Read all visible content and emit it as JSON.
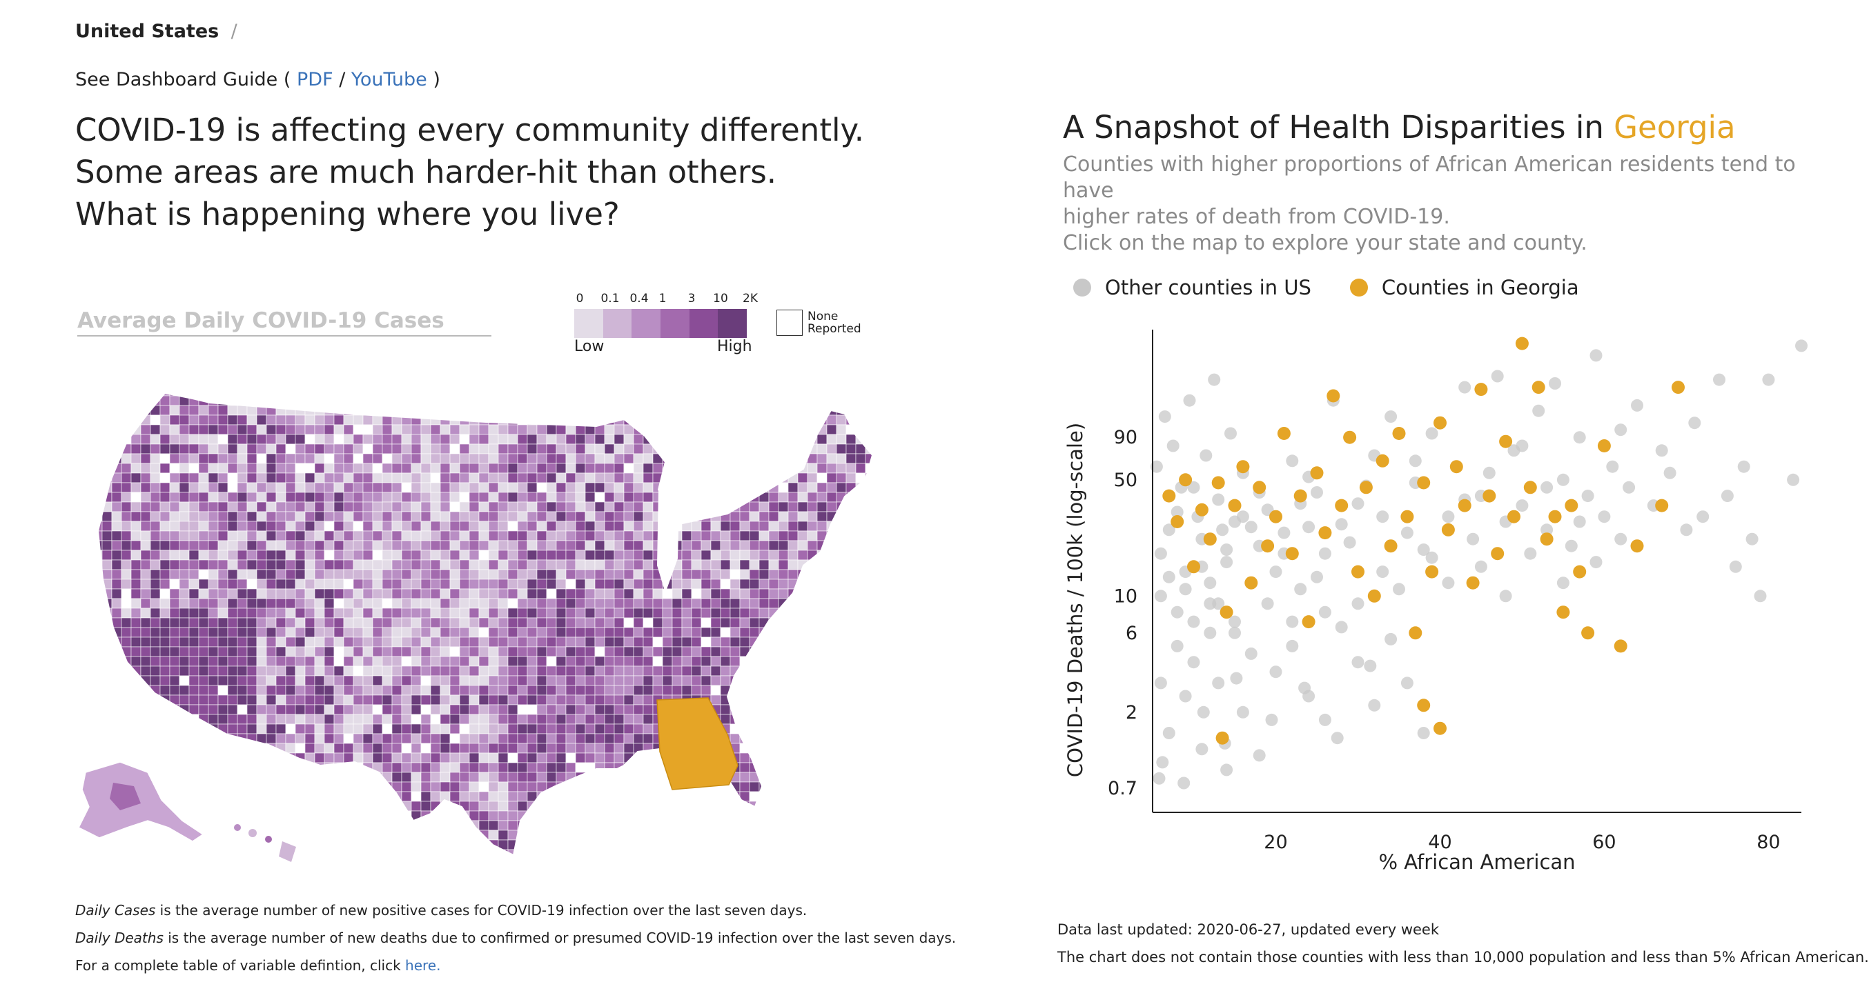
{
  "breadcrumb": {
    "country": "United States",
    "separator": "/"
  },
  "guide": {
    "prefix": "See Dashboard Guide (",
    "pdf": "PDF",
    "slash": "/",
    "youtube": "YouTube",
    "suffix": ")"
  },
  "headline": [
    "COVID-19 is affecting every community differently.",
    "Some areas are much harder-hit than others.",
    "What is happening where you live?"
  ],
  "map": {
    "title": "Average Daily COVID-19 Cases",
    "legend": {
      "ticks": [
        "0",
        "0.1",
        "0.4",
        "1",
        "3",
        "10",
        "2K"
      ],
      "colors": [
        "#e3dce7",
        "#cfb6d6",
        "#b98ec4",
        "#a36aae",
        "#8a4d97",
        "#6a3d7b"
      ],
      "low": "Low",
      "high": "High",
      "none_reported": [
        "None",
        "Reported"
      ]
    },
    "highlight_state": "Georgia",
    "highlight_color": "#e5a526"
  },
  "notes": {
    "cases_term": "Daily Cases",
    "cases_text": " is the average number of new positive cases for COVID-19 infection over the last seven days.",
    "deaths_term": "Daily Deaths",
    "deaths_text": " is the average number of new deaths due to confirmed or presumed COVID-19 infection over the last seven days.",
    "table_text": "For a complete table of variable defintion, click ",
    "table_link": "here."
  },
  "snapshot": {
    "title_prefix": "A Snapshot of Health Disparities in ",
    "state": "Georgia",
    "description": [
      "Counties with higher proportions of African American residents tend to have",
      "higher rates of death from COVID-19.",
      "Click on the map to explore your state and county."
    ]
  },
  "chart_data": {
    "type": "scatter",
    "xlabel": "% African American",
    "ylabel": "COVID-19 Deaths / 100k (log-scale)",
    "x_ticks": [
      20,
      40,
      60,
      80
    ],
    "y_ticks": [
      0.7,
      2,
      6,
      10,
      50,
      90
    ],
    "y_scale": "log",
    "xlim": [
      5,
      84
    ],
    "ylim": [
      0.5,
      400
    ],
    "series": [
      {
        "name": "Other counties in US",
        "color": "#c8c8c8",
        "points": [
          [
            6,
            18
          ],
          [
            7,
            25
          ],
          [
            8,
            32
          ],
          [
            9,
            14
          ],
          [
            10,
            45
          ],
          [
            11,
            22
          ],
          [
            12,
            9
          ],
          [
            13,
            38
          ],
          [
            14,
            16
          ],
          [
            15,
            28
          ],
          [
            16,
            55
          ],
          [
            17,
            12
          ],
          [
            18,
            20
          ],
          [
            19,
            33
          ],
          [
            21,
            18
          ],
          [
            22,
            65
          ],
          [
            23,
            11
          ],
          [
            24,
            26
          ],
          [
            25,
            42
          ],
          [
            26,
            8
          ],
          [
            27,
            150
          ],
          [
            29,
            21
          ],
          [
            30,
            36
          ],
          [
            32,
            70
          ],
          [
            33,
            14
          ],
          [
            34,
            120
          ],
          [
            36,
            24
          ],
          [
            37,
            48
          ],
          [
            38,
            19
          ],
          [
            39,
            95
          ],
          [
            41,
            30
          ],
          [
            42,
            60
          ],
          [
            43,
            180
          ],
          [
            44,
            22
          ],
          [
            45,
            40
          ],
          [
            47,
            210
          ],
          [
            48,
            28
          ],
          [
            49,
            75
          ],
          [
            50,
            35
          ],
          [
            52,
            130
          ],
          [
            53,
            25
          ],
          [
            54,
            190
          ],
          [
            55,
            50
          ],
          [
            56,
            20
          ],
          [
            57,
            90
          ],
          [
            58,
            40
          ],
          [
            59,
            280
          ],
          [
            60,
            30
          ],
          [
            61,
            60
          ],
          [
            62,
            100
          ],
          [
            63,
            45
          ],
          [
            64,
            140
          ],
          [
            66,
            35
          ],
          [
            67,
            75
          ],
          [
            68,
            55
          ],
          [
            70,
            25
          ],
          [
            71,
            110
          ],
          [
            72,
            30
          ],
          [
            74,
            200
          ],
          [
            75,
            40
          ],
          [
            76,
            15
          ],
          [
            77,
            60
          ],
          [
            78,
            22
          ],
          [
            79,
            10
          ],
          [
            80,
            200
          ],
          [
            83,
            50
          ],
          [
            84,
            320
          ],
          [
            6,
            3
          ],
          [
            7,
            1.5
          ],
          [
            8,
            5
          ],
          [
            9,
            2.5
          ],
          [
            10,
            4
          ],
          [
            11,
            1.2
          ],
          [
            12,
            6
          ],
          [
            13,
            3
          ],
          [
            14,
            0.9
          ],
          [
            15,
            7
          ],
          [
            16,
            2
          ],
          [
            17,
            4.5
          ],
          [
            18,
            1.1
          ],
          [
            20,
            3.5
          ],
          [
            22,
            5
          ],
          [
            24,
            2.5
          ],
          [
            26,
            1.8
          ],
          [
            28,
            6.5
          ],
          [
            30,
            4
          ],
          [
            32,
            2.2
          ],
          [
            34,
            5.5
          ],
          [
            36,
            3
          ],
          [
            38,
            1.5
          ],
          [
            5.5,
            60
          ],
          [
            6.5,
            120
          ],
          [
            7.5,
            80
          ],
          [
            8.5,
            45
          ],
          [
            9.5,
            150
          ],
          [
            10.5,
            30
          ],
          [
            11.5,
            70
          ],
          [
            12.5,
            200
          ],
          [
            13.5,
            25
          ],
          [
            14.5,
            95
          ],
          [
            6,
            10
          ],
          [
            7,
            13
          ],
          [
            8,
            8
          ],
          [
            9,
            11
          ],
          [
            10,
            7
          ],
          [
            11,
            15
          ],
          [
            12,
            12
          ],
          [
            13,
            9
          ],
          [
            14,
            19
          ],
          [
            15,
            6
          ],
          [
            16,
            30
          ],
          [
            17,
            26
          ],
          [
            18,
            42
          ],
          [
            19,
            9
          ],
          [
            20,
            14
          ],
          [
            21,
            24
          ],
          [
            22,
            7
          ],
          [
            23,
            36
          ],
          [
            24,
            52
          ],
          [
            25,
            13
          ],
          [
            26,
            18
          ],
          [
            28,
            27
          ],
          [
            30,
            9
          ],
          [
            31,
            46
          ],
          [
            33,
            30
          ],
          [
            35,
            11
          ],
          [
            37,
            65
          ],
          [
            39,
            17
          ],
          [
            41,
            12
          ],
          [
            43,
            38
          ],
          [
            45,
            15
          ],
          [
            46,
            55
          ],
          [
            48,
            10
          ],
          [
            50,
            80
          ],
          [
            51,
            18
          ],
          [
            53,
            45
          ],
          [
            55,
            12
          ],
          [
            57,
            28
          ],
          [
            59,
            16
          ],
          [
            62,
            22
          ],
          [
            5.8,
            0.8
          ],
          [
            6.2,
            1.0
          ],
          [
            8.8,
            0.75
          ],
          [
            11.2,
            2.0
          ],
          [
            13.8,
            1.3
          ],
          [
            15.2,
            3.2
          ],
          [
            19.5,
            1.8
          ],
          [
            23.5,
            2.8
          ],
          [
            27.5,
            1.4
          ],
          [
            31.5,
            3.8
          ]
        ]
      },
      {
        "name": "Counties in Georgia",
        "color": "#e5a526",
        "points": [
          [
            7,
            40
          ],
          [
            8,
            28
          ],
          [
            9,
            50
          ],
          [
            10,
            15
          ],
          [
            11,
            33
          ],
          [
            12,
            22
          ],
          [
            13,
            48
          ],
          [
            14,
            8
          ],
          [
            15,
            35
          ],
          [
            16,
            60
          ],
          [
            17,
            12
          ],
          [
            18,
            45
          ],
          [
            19,
            20
          ],
          [
            20,
            30
          ],
          [
            21,
            95
          ],
          [
            22,
            18
          ],
          [
            23,
            40
          ],
          [
            24,
            7
          ],
          [
            25,
            55
          ],
          [
            26,
            24
          ],
          [
            27,
            160
          ],
          [
            28,
            35
          ],
          [
            29,
            90
          ],
          [
            30,
            14
          ],
          [
            31,
            45
          ],
          [
            32,
            10
          ],
          [
            33,
            65
          ],
          [
            34,
            20
          ],
          [
            35,
            95
          ],
          [
            36,
            30
          ],
          [
            37,
            6
          ],
          [
            38,
            48
          ],
          [
            39,
            14
          ],
          [
            40,
            110
          ],
          [
            41,
            25
          ],
          [
            42,
            60
          ],
          [
            43,
            35
          ],
          [
            44,
            12
          ],
          [
            45,
            175
          ],
          [
            46,
            40
          ],
          [
            47,
            18
          ],
          [
            48,
            85
          ],
          [
            49,
            30
          ],
          [
            50,
            330
          ],
          [
            51,
            45
          ],
          [
            52,
            180
          ],
          [
            53,
            22
          ],
          [
            54,
            30
          ],
          [
            55,
            8
          ],
          [
            56,
            35
          ],
          [
            57,
            14
          ],
          [
            58,
            6
          ],
          [
            60,
            80
          ],
          [
            62,
            5
          ],
          [
            64,
            20
          ],
          [
            67,
            35
          ],
          [
            69,
            180
          ],
          [
            38,
            2.2
          ],
          [
            40,
            1.6
          ],
          [
            13.5,
            1.4
          ]
        ]
      }
    ]
  },
  "footer": {
    "updated": "Data last updated: 2020-06-27, updated every week",
    "note": "The chart does not contain those counties with less than 10,000 population and less than 5% African American."
  }
}
